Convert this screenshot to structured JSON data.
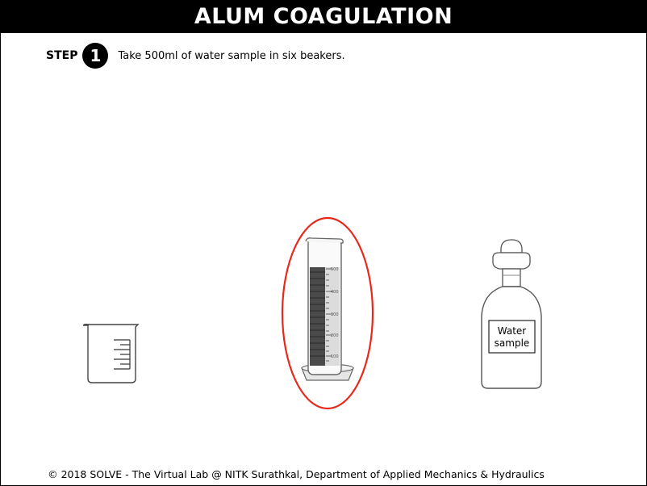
{
  "header": {
    "title": "ALUM COAGULATION"
  },
  "step": {
    "label": "STEP",
    "number": "1",
    "instruction": "Take 500ml of water sample in six beakers."
  },
  "apparatus": {
    "cylinder": {
      "scale_labels": [
        "500",
        "400",
        "300",
        "200",
        "100"
      ],
      "highlighted": true,
      "highlight_color": "#e8281a"
    },
    "bottle": {
      "label_line1": "Water",
      "label_line2": "sample"
    }
  },
  "footer": {
    "text": "© 2018 SOLVE - The Virtual Lab @ NITK Surathkal, Department of Applied Mechanics & Hydraulics"
  }
}
